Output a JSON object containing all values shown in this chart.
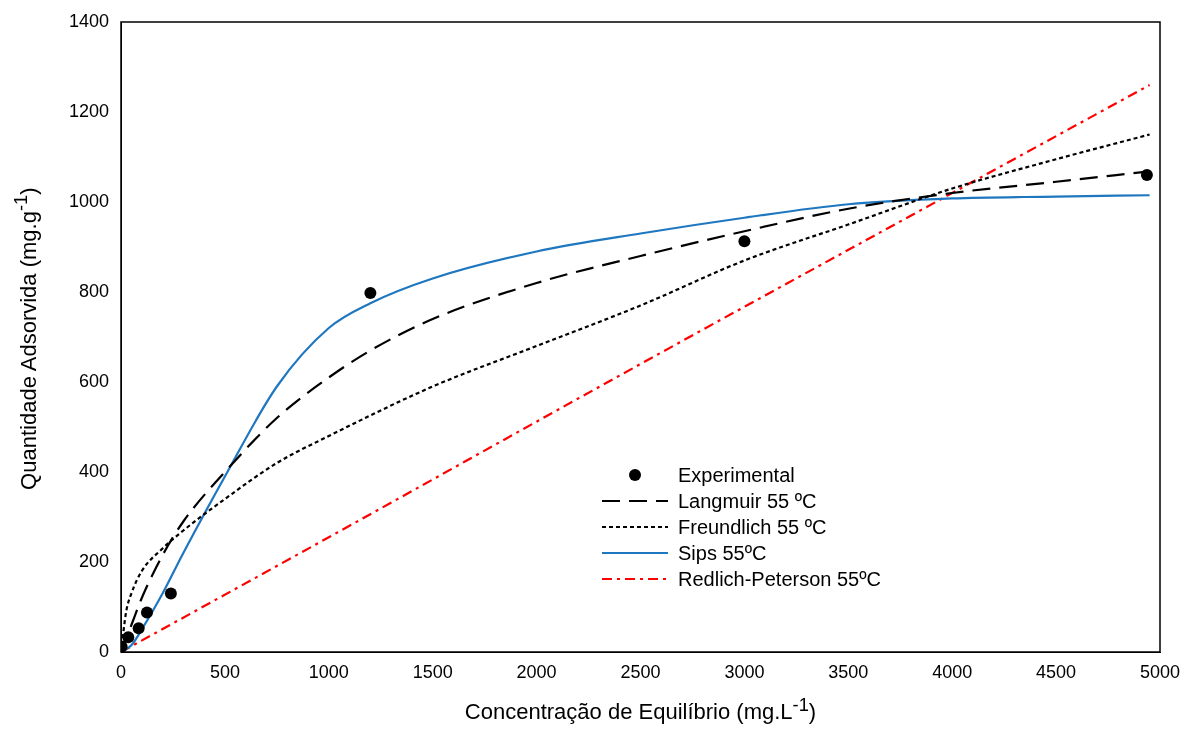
{
  "chart_data": {
    "type": "line",
    "xlabel": "Concentração de Equilíbrio (mg.L$^{-1}$)",
    "ylabel": "Quantidade Adsorvida (mg.g$^{-1}$)",
    "xlim": [
      0,
      5000
    ],
    "xticks": [
      0,
      500,
      1000,
      1500,
      2000,
      2500,
      3000,
      3500,
      4000,
      4500,
      5000
    ],
    "ylim": [
      0,
      1400
    ],
    "yticks": [
      0,
      200,
      400,
      600,
      800,
      1000,
      1200,
      1400
    ],
    "grid": false,
    "legend": "bottom right",
    "series": [
      {
        "name": "Experimental",
        "type": "scatter",
        "marker": "circle",
        "color": "#000000",
        "x": [
          3,
          35,
          85,
          125,
          240,
          1200,
          3000,
          4937
        ],
        "values": [
          12,
          33,
          53,
          88,
          130,
          798,
          913,
          1060
        ]
      },
      {
        "name": "Langmuir 55 ºC",
        "marker": "none",
        "line_style": "dashed",
        "color": "#000000",
        "x": [
          0,
          50,
          100,
          200,
          300,
          500,
          750,
          1000,
          1200,
          1500,
          2000,
          2500,
          3000,
          3500,
          4000,
          4500,
          4950
        ],
        "values": [
          0,
          60,
          120,
          215,
          290,
          400,
          520,
          610,
          670,
          740,
          820,
          880,
          935,
          985,
          1020,
          1045,
          1068
        ]
      },
      {
        "name": "Freundlich 55 ºC",
        "marker": "none",
        "line_style": "dotted",
        "color": "#000000",
        "x": [
          0,
          25,
          50,
          100,
          200,
          300,
          500,
          750,
          1000,
          1500,
          2000,
          2500,
          3000,
          3500,
          4000,
          4500,
          4950
        ],
        "values": [
          0,
          90,
          130,
          180,
          230,
          270,
          340,
          420,
          480,
          590,
          680,
          770,
          870,
          950,
          1030,
          1095,
          1150
        ]
      },
      {
        "name": "Sips 55ºC",
        "marker": "none",
        "line_style": "solid",
        "color": "#1f77c0",
        "x": [
          0,
          50,
          100,
          200,
          300,
          500,
          750,
          1000,
          1200,
          1500,
          2000,
          2500,
          3000,
          3500,
          4000,
          4500,
          4950
        ],
        "values": [
          0,
          15,
          50,
          130,
          220,
          390,
          590,
          720,
          775,
          830,
          890,
          930,
          965,
          995,
          1008,
          1012,
          1015
        ]
      },
      {
        "name": "Redlich-Peterson 55ºC",
        "marker": "none",
        "line_style": "dashdot",
        "color": "#ff0000",
        "x": [
          0,
          1000,
          2500,
          4000,
          4950
        ],
        "values": [
          0,
          255,
          640,
          1020,
          1260
        ]
      }
    ]
  }
}
